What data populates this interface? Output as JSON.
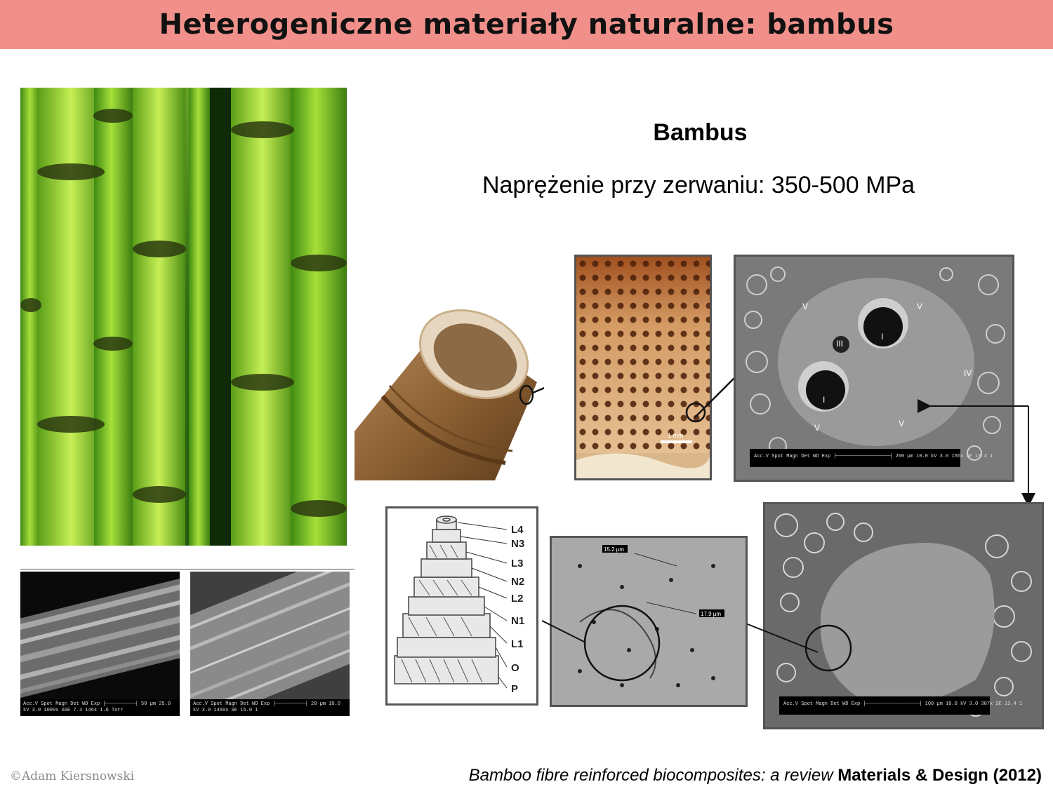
{
  "slide": {
    "title": "Heterogeniczne materiały naturalne: bambus",
    "heading": "Bambus",
    "tensile_strength": "Naprężenie przy zerwaniu: 350-500 MPa"
  },
  "sem_left": {
    "bar_text": "Acc.V  Spot Magn   Det  WD  Exp  ├──────────┤ 50 µm  25.0 kV 3.0  1000x  GSE 7.3  1464  1.6 Torr"
  },
  "sem_right": {
    "bar_text": "Acc.V  Spot Magn   Det  WD  Exp  ├──────────┤ 20 µm  10.0 kV 3.0  1460x  SE  15.0  1"
  },
  "figure": {
    "layers": [
      "L4",
      "N3",
      "L3",
      "N2",
      "L2",
      "N1",
      "L1",
      "O",
      "P"
    ],
    "sem_cross_bar": "Acc.V  Spot Magn   Det  WD  Exp  ├──────────────────┤ 200 µm  10.0 kV 3.0  156x  SE  13.4  1",
    "sem_fibre_bar": "Acc.V  Spot Magn   Det  WD  Exp  ├──────────────────┤ 100 µm  10.0 kV 3.0  307x  SE  13.4  1",
    "measure_1": "15.2 µm",
    "measure_2": "17.9 µm",
    "scale_bar": "1 mm",
    "bundle_labels": [
      "V",
      "V",
      "I",
      "III",
      "I",
      "V",
      "V",
      "IV"
    ]
  },
  "footer": {
    "copyright": "©Adam Kiersnowski",
    "citation_title": "Bamboo fibre reinforced biocomposites: a review",
    "citation_source": "Materials & Design (2012)"
  },
  "colors": {
    "title_bar": "#f1908a",
    "bamboo_green": "#7cc421",
    "sem_grey": "#8c8c8c"
  }
}
